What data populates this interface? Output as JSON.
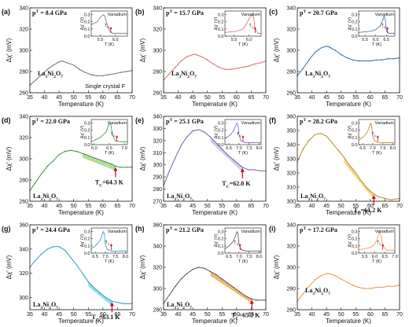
{
  "figure": {
    "shared_xlabel": "Temperature (K)",
    "shared_ylabel": "Δχ′ (mV)",
    "inset_xlabel": "T (K)",
    "inset_ylabel": "Δχ′ (V)",
    "inset_title": "Vanadium",
    "inset_tc_label": "T",
    "inset_tc_sub": "C"
  },
  "chart_data": [
    {
      "type": "line",
      "panel": "(a)",
      "pressure": "p = 8.4 GPa",
      "material": "La3Ni2O7",
      "note": "Single crystal F",
      "color": "#707070",
      "xlim": [
        35,
        70
      ],
      "ylim": [
        260,
        340
      ],
      "xticks": [
        35,
        40,
        45,
        50,
        55,
        60,
        65,
        70
      ],
      "yticks": [
        260,
        280,
        300,
        320,
        340
      ],
      "x": [
        35,
        37,
        39,
        41,
        43,
        45,
        46,
        48,
        50,
        52,
        54,
        56,
        58,
        60,
        62,
        64,
        66,
        68,
        70
      ],
      "y": [
        267,
        272,
        277,
        282,
        286,
        289,
        290,
        288,
        286,
        282,
        279,
        277,
        276,
        276,
        277,
        278,
        279,
        280,
        281
      ],
      "tc": null,
      "shade": null,
      "inset": {
        "color": "#707070",
        "xlim": [
          5.2,
          6.4
        ],
        "xticks": [
          5.5,
          6.0
        ],
        "ylim": [
          0,
          0.35
        ],
        "yticks": [
          0.0,
          0.1,
          0.2,
          0.3
        ],
        "x": [
          5.2,
          5.4,
          5.5,
          5.6,
          5.65,
          5.7,
          5.8,
          5.9,
          6.0,
          6.2,
          6.4
        ],
        "y": [
          0.16,
          0.2,
          0.26,
          0.3,
          0.28,
          0.2,
          0.08,
          0.04,
          0.04,
          0.04,
          0.04
        ],
        "tc": 5.85
      }
    },
    {
      "type": "line",
      "panel": "(b)",
      "pressure": "p = 15.7 GPa",
      "material": "La3Ni2O7",
      "note": "",
      "color": "#e06666",
      "xlim": [
        35,
        70
      ],
      "ylim": [
        260,
        340
      ],
      "xticks": [
        35,
        40,
        45,
        50,
        55,
        60,
        65,
        70
      ],
      "yticks": [
        260,
        280,
        300,
        320,
        340
      ],
      "x": [
        35,
        37,
        39,
        41,
        43,
        45,
        46,
        48,
        50,
        52,
        54,
        56,
        58,
        60,
        62,
        64,
        66,
        68,
        70
      ],
      "y": [
        272,
        278,
        284,
        290,
        294,
        296,
        296,
        294,
        291,
        287,
        284,
        282,
        282,
        283,
        284,
        285,
        287,
        288,
        290
      ],
      "tc": null,
      "shade": null,
      "inset": {
        "color": "#e06666",
        "xlim": [
          5.2,
          6.4
        ],
        "xticks": [
          5.5,
          6.0
        ],
        "ylim": [
          0,
          0.35
        ],
        "yticks": [
          0.0,
          0.1,
          0.2,
          0.3
        ],
        "x": [
          5.2,
          5.4,
          5.6,
          5.8,
          5.9,
          6.0,
          6.1,
          6.15,
          6.2,
          6.3,
          6.4
        ],
        "y": [
          0.05,
          0.06,
          0.07,
          0.1,
          0.16,
          0.24,
          0.3,
          0.27,
          0.1,
          0.04,
          0.04
        ],
        "tc": 6.2
      }
    },
    {
      "type": "line",
      "panel": "(c)",
      "pressure": "p = 20.7 GPa",
      "material": "La3Ni2O7",
      "note": "",
      "color": "#2f6ea3",
      "xlim": [
        35,
        70
      ],
      "ylim": [
        260,
        340
      ],
      "xticks": [
        35,
        40,
        45,
        50,
        55,
        60,
        65,
        70
      ],
      "yticks": [
        260,
        280,
        300,
        320,
        340
      ],
      "x": [
        35,
        37,
        39,
        41,
        43,
        45,
        46,
        48,
        50,
        52,
        54,
        56,
        58,
        60,
        62,
        64,
        66,
        68,
        70
      ],
      "y": [
        276,
        283,
        291,
        298,
        302,
        304,
        303,
        300,
        296,
        293,
        291,
        290,
        290,
        290,
        291,
        291,
        292,
        292,
        293
      ],
      "tc": null,
      "shade": null,
      "inset": {
        "color": "#2f6ea3",
        "xlim": [
          5.2,
          6.9
        ],
        "xticks": [
          5.5,
          6.0,
          6.5
        ],
        "ylim": [
          0,
          0.35
        ],
        "yticks": [
          0.0,
          0.1,
          0.2,
          0.3
        ],
        "x": [
          5.2,
          5.5,
          5.8,
          6.0,
          6.2,
          6.3,
          6.4,
          6.45,
          6.5,
          6.6,
          6.9
        ],
        "y": [
          0.05,
          0.06,
          0.07,
          0.09,
          0.14,
          0.2,
          0.28,
          0.24,
          0.08,
          0.04,
          0.04
        ],
        "tc": 6.55
      }
    },
    {
      "type": "line",
      "panel": "(d)",
      "pressure": "p = 22.0 GPa",
      "material": "La3Ni2O7",
      "note": "",
      "color": "#3a8f3a",
      "xlim": [
        35,
        70
      ],
      "ylim": [
        260,
        340
      ],
      "xticks": [
        35,
        40,
        45,
        50,
        55,
        60,
        65,
        70
      ],
      "yticks": [
        260,
        280,
        300,
        320,
        340
      ],
      "x": [
        35,
        37,
        39,
        41,
        43,
        45,
        47,
        49,
        51,
        53,
        55,
        57,
        59,
        61,
        63,
        64.3,
        66,
        68,
        70
      ],
      "y": [
        270,
        278,
        286,
        293,
        298,
        304,
        307,
        308,
        307,
        305,
        303,
        301,
        299,
        297,
        295,
        293,
        292,
        292,
        292
      ],
      "tc": 64.3,
      "tc_label": "T",
      "tc_value": "=64.3 K",
      "shade": {
        "from": 53,
        "to": 64.3,
        "fill": "#9ad27a"
      },
      "inset": {
        "color": "#3a8f3a",
        "xlim": [
          5.9,
          7.1
        ],
        "xticks": [
          6.0,
          6.5,
          7.0
        ],
        "ylim": [
          0,
          0.35
        ],
        "yticks": [
          0.0,
          0.1,
          0.2,
          0.3
        ],
        "x": [
          5.9,
          6.0,
          6.2,
          6.4,
          6.5,
          6.55,
          6.6,
          6.7,
          6.9,
          7.1
        ],
        "y": [
          0.04,
          0.06,
          0.1,
          0.18,
          0.3,
          0.28,
          0.14,
          0.05,
          0.04,
          0.04
        ],
        "tc": 6.75
      }
    },
    {
      "type": "line",
      "panel": "(e)",
      "pressure": "p = 25.1 GPa",
      "material": "La3Ni2O7",
      "note": "",
      "color": "#7a5cb3",
      "xlim": [
        35,
        70
      ],
      "ylim": [
        270,
        340
      ],
      "xticks": [
        35,
        40,
        45,
        50,
        55,
        60,
        65,
        70
      ],
      "yticks": [
        270,
        280,
        290,
        300,
        310,
        320,
        330,
        340
      ],
      "x": [
        35,
        37,
        39,
        41,
        43,
        45,
        47,
        49,
        51,
        53,
        55,
        57,
        59,
        62,
        64,
        66,
        68,
        70
      ],
      "y": [
        283,
        295,
        306,
        316,
        323,
        328,
        329,
        327,
        323,
        318,
        313,
        308,
        304,
        298,
        296,
        296,
        295,
        295
      ],
      "tc": 62.0,
      "tc_label": "T",
      "tc_value": "=62.0 K",
      "shade": {
        "from": 50,
        "to": 62.0,
        "fill": "#c9b8ea"
      },
      "inset": {
        "color": "#7a5cb3",
        "xlim": [
          6.3,
          8.1
        ],
        "xticks": [
          6.5,
          7.0,
          7.5,
          8.0
        ],
        "ylim": [
          0,
          0.35
        ],
        "yticks": [
          0.0,
          0.1,
          0.2,
          0.3
        ],
        "x": [
          6.3,
          6.5,
          6.7,
          6.8,
          6.9,
          6.95,
          7.0,
          7.1,
          7.3,
          7.6,
          8.1
        ],
        "y": [
          0.08,
          0.12,
          0.18,
          0.24,
          0.3,
          0.27,
          0.14,
          0.05,
          0.03,
          0.03,
          0.03
        ],
        "tc": 7.2
      }
    },
    {
      "type": "line",
      "panel": "(f)",
      "pressure": "p = 28.2 GPa",
      "material": "La3Ni2O7",
      "note": "",
      "color": "#b88a1e",
      "xlim": [
        35,
        70
      ],
      "ylim": [
        300,
        360
      ],
      "xticks": [
        35,
        40,
        45,
        50,
        55,
        60,
        65,
        70
      ],
      "yticks": [
        300,
        310,
        320,
        330,
        340,
        350,
        360
      ],
      "x": [
        35,
        37,
        39,
        41,
        43,
        45,
        47,
        49,
        51,
        53,
        55,
        57,
        59,
        61.2,
        63,
        65,
        67,
        70
      ],
      "y": [
        328,
        337,
        343,
        347,
        348,
        346,
        341,
        336,
        331,
        325,
        320,
        314,
        309,
        305,
        303,
        302,
        301,
        302
      ],
      "tc": 61.2,
      "tc_label": "T",
      "tc_value": "=61.2 K",
      "shade": {
        "from": 51,
        "to": 61.2,
        "fill": "#f2cf6d"
      },
      "inset": {
        "color": "#b88a1e",
        "xlim": [
          6.3,
          8.1
        ],
        "xticks": [
          6.5,
          7.0,
          7.5,
          8.0
        ],
        "ylim": [
          0,
          0.35
        ],
        "yticks": [
          0.0,
          0.1,
          0.2,
          0.3
        ],
        "x": [
          6.3,
          6.5,
          6.7,
          6.8,
          6.9,
          6.95,
          7.0,
          7.1,
          7.3,
          7.6,
          8.1
        ],
        "y": [
          0.06,
          0.1,
          0.16,
          0.22,
          0.3,
          0.26,
          0.12,
          0.05,
          0.03,
          0.03,
          0.03
        ],
        "tc": 7.25
      }
    },
    {
      "type": "line",
      "panel": "(g)",
      "pressure": "p = 24.4 GPa",
      "material": "La3Ni2O7",
      "note": "",
      "color": "#2a9bb5",
      "xlim": [
        35,
        70
      ],
      "ylim": [
        290,
        360
      ],
      "xticks": [
        35,
        40,
        45,
        50,
        55,
        60,
        65,
        70
      ],
      "yticks": [
        300,
        320,
        340,
        360
      ],
      "x": [
        35,
        37,
        39,
        41,
        43,
        45,
        47,
        49,
        51,
        53,
        55,
        57,
        59,
        61,
        63.1,
        65,
        67,
        70
      ],
      "y": [
        325,
        331,
        336,
        340,
        342,
        342,
        339,
        333,
        327,
        320,
        313,
        308,
        304,
        300,
        297,
        296,
        295,
        295
      ],
      "tc": 63.1,
      "tc_label": "T",
      "tc_value": "=63.1 K",
      "shade": {
        "from": 55,
        "to": 63.1,
        "fill": "#74d6e6"
      },
      "inset": {
        "color": "#2a9bb5",
        "xlim": [
          6.3,
          8.1
        ],
        "xticks": [
          6.5,
          7.0,
          7.5,
          8.0
        ],
        "ylim": [
          0,
          0.35
        ],
        "yticks": [
          0.0,
          0.1,
          0.2,
          0.3
        ],
        "x": [
          6.3,
          6.5,
          6.7,
          6.8,
          6.9,
          6.95,
          7.0,
          7.1,
          7.3,
          7.6,
          8.1
        ],
        "y": [
          0.06,
          0.1,
          0.16,
          0.22,
          0.3,
          0.27,
          0.12,
          0.05,
          0.03,
          0.03,
          0.03
        ],
        "tc": 7.3
      }
    },
    {
      "type": "line",
      "panel": "(h)",
      "pressure": "p = 21.2 GPa",
      "material": "La3Ni2O7",
      "note": "",
      "color": "#555555",
      "xlim": [
        35,
        70
      ],
      "ylim": [
        280,
        360
      ],
      "xticks": [
        35,
        40,
        45,
        50,
        55,
        60,
        65,
        70
      ],
      "yticks": [
        280,
        300,
        320,
        340,
        360
      ],
      "x": [
        35,
        37,
        39,
        41,
        43,
        45,
        47,
        49,
        51,
        53,
        55,
        57,
        59,
        61,
        63,
        65.2,
        67,
        70
      ],
      "y": [
        286,
        294,
        302,
        309,
        314,
        318,
        320,
        319,
        316,
        313,
        309,
        305,
        301,
        297,
        293,
        290,
        289,
        289
      ],
      "tc": 65.2,
      "tc_label": "T",
      "tc_value": "=65.2 K",
      "shade": {
        "from": 51,
        "to": 65.2,
        "fill": "#e8a33a"
      },
      "inset": {
        "color": "#555555",
        "xlim": [
          6.3,
          8.1
        ],
        "xticks": [
          6.5,
          7.0,
          7.5,
          8.0
        ],
        "ylim": [
          0,
          0.35
        ],
        "yticks": [
          0.0,
          0.1,
          0.2,
          0.3
        ],
        "x": [
          6.3,
          6.5,
          6.7,
          6.8,
          6.9,
          6.95,
          7.0,
          7.1,
          7.3,
          7.6,
          8.1
        ],
        "y": [
          0.06,
          0.1,
          0.16,
          0.22,
          0.3,
          0.27,
          0.12,
          0.05,
          0.03,
          0.03,
          0.03
        ],
        "tc": 7.05
      }
    },
    {
      "type": "line",
      "panel": "(i)",
      "pressure": "p = 17.2 GPa",
      "material": "La3Ni2O7",
      "note": "",
      "color": "#e8954a",
      "xlim": [
        35,
        70
      ],
      "ylim": [
        260,
        340
      ],
      "xticks": [
        35,
        40,
        45,
        50,
        55,
        60,
        65,
        70
      ],
      "yticks": [
        260,
        280,
        300,
        320,
        340
      ],
      "x": [
        35,
        37,
        39,
        41,
        43,
        45,
        46,
        48,
        50,
        52,
        54,
        56,
        58,
        60,
        62,
        64,
        66,
        68,
        70
      ],
      "y": [
        268,
        275,
        282,
        288,
        292,
        294,
        294,
        292,
        289,
        286,
        283,
        281,
        280,
        280,
        281,
        281,
        282,
        282,
        283
      ],
      "tc": null,
      "shade": null,
      "inset": {
        "color": "#e8954a",
        "xlim": [
          5.2,
          7.0
        ],
        "xticks": [
          5.5,
          6.0,
          6.5,
          7.0
        ],
        "ylim": [
          0,
          0.35
        ],
        "yticks": [
          0.0,
          0.1,
          0.2,
          0.3
        ],
        "x": [
          5.2,
          5.5,
          5.8,
          6.0,
          6.1,
          6.2,
          6.25,
          6.3,
          6.4,
          6.6,
          7.0
        ],
        "y": [
          0.05,
          0.06,
          0.08,
          0.12,
          0.18,
          0.26,
          0.3,
          0.26,
          0.1,
          0.04,
          0.04
        ],
        "tc": 6.4
      }
    }
  ]
}
